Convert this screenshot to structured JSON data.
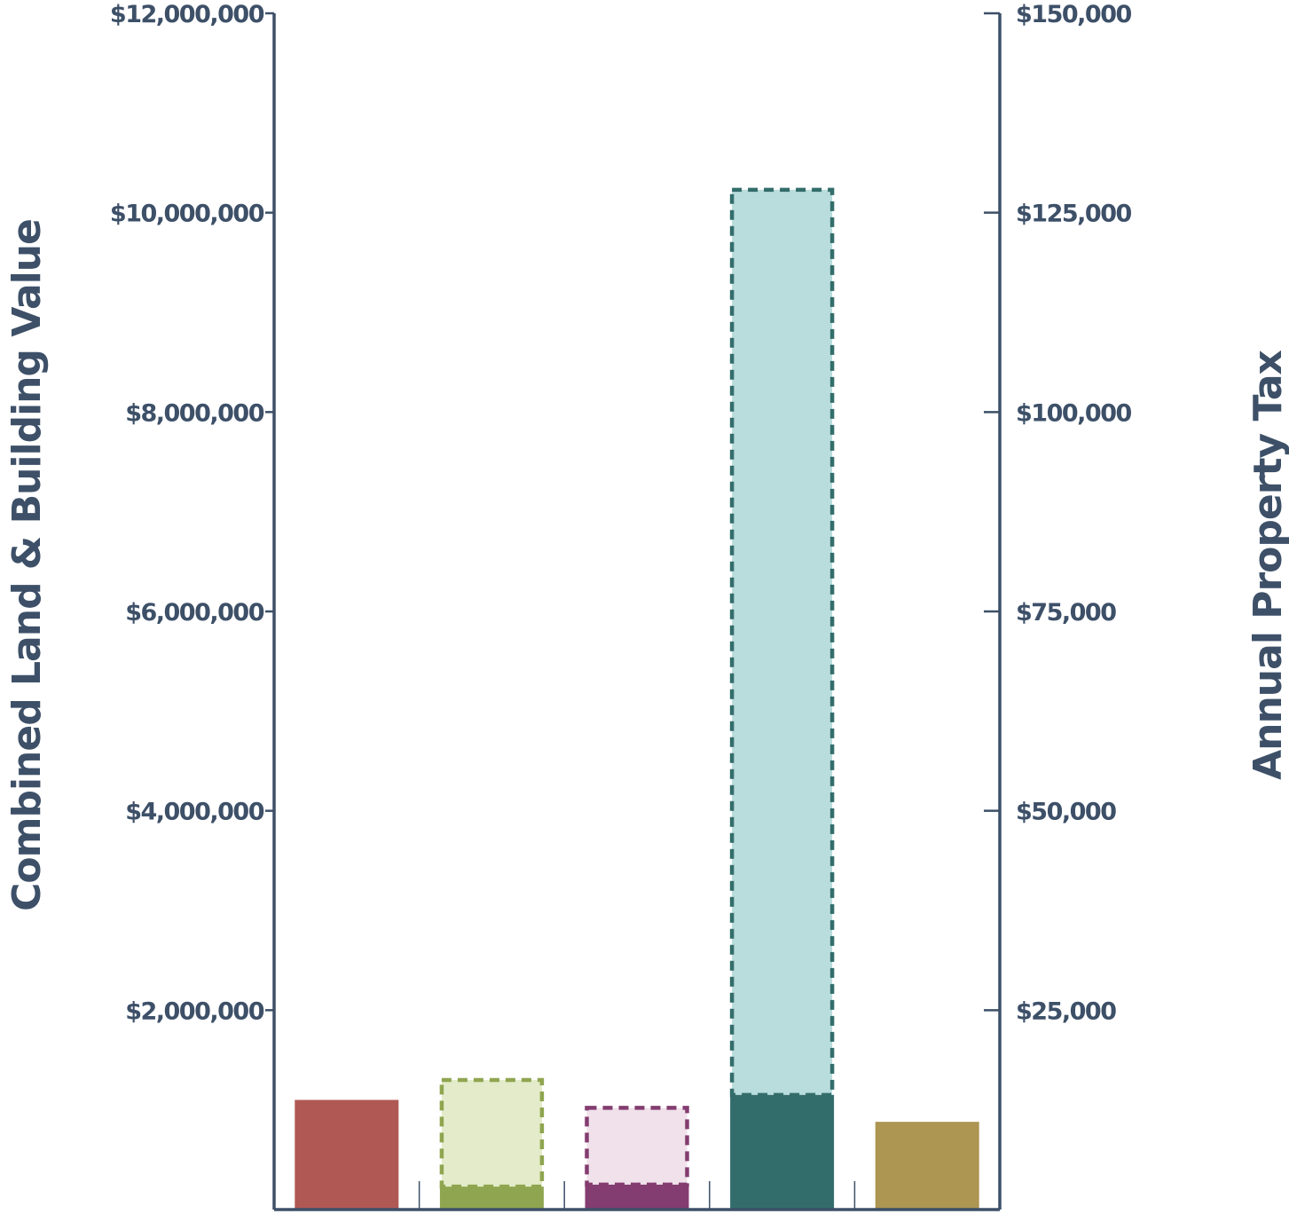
{
  "chart_data": {
    "type": "bar",
    "title": "",
    "ylabel": "Combined Land & Building Value",
    "ylabel_right": "Annual Property Tax",
    "ylim": [
      0,
      12000000
    ],
    "ylim_right": [
      0,
      150000
    ],
    "yticks": [
      "$2,000,000",
      "$4,000,000",
      "$6,000,000",
      "$8,000,000",
      "$10,000,000",
      "$12,000,000"
    ],
    "yticks_right": [
      "$25,000",
      "$50,000",
      "$75,000",
      "$100,000",
      "$125,000",
      "$150,000"
    ],
    "grid": false,
    "legend": "none",
    "categories": [
      "",
      "",
      "",
      "",
      ""
    ],
    "series": [
      {
        "axis": "left",
        "style": "solid",
        "values": [
          1100000,
          230000,
          250000,
          1150000,
          880000
        ],
        "colors": [
          "#b05954",
          "#8fa54f",
          "#843d70",
          "#336d6b",
          "#ad9552"
        ]
      },
      {
        "axis": "left",
        "style": "dashed",
        "values": [
          null,
          1300000,
          1020000,
          10230000,
          null
        ],
        "fill_colors": [
          "",
          "#e3ebca",
          "#f0e1ea",
          "#b9dcdc",
          ""
        ],
        "border_colors": [
          "",
          "#8fa54f",
          "#843d70",
          "#336d6b",
          ""
        ]
      }
    ]
  }
}
